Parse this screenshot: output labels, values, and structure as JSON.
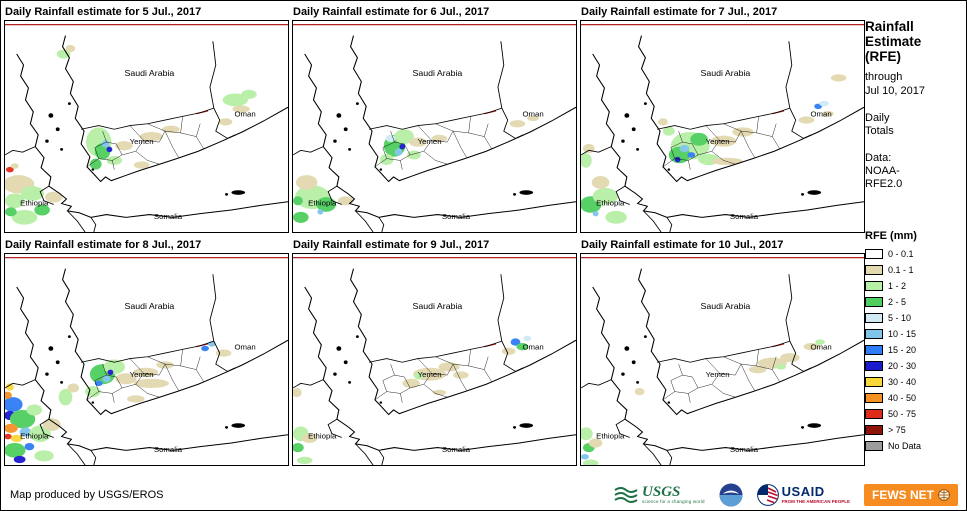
{
  "page": {
    "background": "#FFFFFF",
    "border_color": "#000000"
  },
  "map_labels": {
    "saudi_arabia": "Saudi Arabia",
    "oman": "Oman",
    "yemen": "Yemen",
    "ethiopia": "Ethiopia",
    "somalia": "Somalia"
  },
  "map_palette": {
    "w": "#FFFFFF",
    "t": "#E2D9AF",
    "g1": "#B7EFA5",
    "g2": "#4FCE5D",
    "b1": "#CFEAF5",
    "b2": "#7FC4EA",
    "b3": "#2F7DF6",
    "b4": "#1B1BCE",
    "y": "#F8D839",
    "o": "#F59123",
    "r": "#DF2C18",
    "dr": "#8C1309",
    "nd": "#9C9C9C"
  },
  "panels": [
    {
      "title": "Daily Rainfall estimate for 5 Jul., 2017",
      "blobs": [
        [
          60,
          36,
          7,
          5,
          "g1"
        ],
        [
          67,
          30,
          5,
          4,
          "t"
        ],
        [
          5,
          162,
          4,
          3,
          "r"
        ],
        [
          10,
          158,
          4,
          3,
          "t"
        ],
        [
          14,
          178,
          16,
          10,
          "t"
        ],
        [
          10,
          196,
          10,
          8,
          "g1"
        ],
        [
          28,
          188,
          12,
          8,
          "g1"
        ],
        [
          20,
          214,
          13,
          8,
          "g1"
        ],
        [
          38,
          206,
          8,
          6,
          "g2"
        ],
        [
          50,
          192,
          9,
          6,
          "t"
        ],
        [
          6,
          208,
          6,
          5,
          "g2"
        ],
        [
          96,
          132,
          13,
          16,
          "g1"
        ],
        [
          100,
          142,
          8,
          9,
          "g2"
        ],
        [
          103,
          134,
          4,
          4,
          "b2"
        ],
        [
          107,
          140,
          3,
          3,
          "b4"
        ],
        [
          93,
          156,
          6,
          6,
          "g2"
        ],
        [
          112,
          152,
          8,
          5,
          "g1"
        ],
        [
          122,
          136,
          9,
          5,
          "t"
        ],
        [
          150,
          126,
          12,
          5,
          "t"
        ],
        [
          170,
          118,
          9,
          4,
          "t"
        ],
        [
          140,
          157,
          8,
          4,
          "t"
        ],
        [
          236,
          86,
          13,
          7,
          "g1"
        ],
        [
          250,
          80,
          8,
          5,
          "g1"
        ],
        [
          242,
          96,
          9,
          4,
          "t"
        ],
        [
          226,
          110,
          7,
          4,
          "t"
        ]
      ]
    },
    {
      "title": "Daily Rainfall estimate for 6 Jul., 2017",
      "blobs": [
        [
          104,
          136,
          11,
          12,
          "g2"
        ],
        [
          114,
          126,
          10,
          8,
          "g1"
        ],
        [
          108,
          143,
          4,
          4,
          "b2"
        ],
        [
          112,
          137,
          3,
          3,
          "b4"
        ],
        [
          96,
          151,
          7,
          6,
          "g1"
        ],
        [
          128,
          132,
          9,
          5,
          "t"
        ],
        [
          124,
          146,
          7,
          5,
          "g1"
        ],
        [
          100,
          128,
          5,
          4,
          "b1"
        ],
        [
          20,
          192,
          18,
          13,
          "g1"
        ],
        [
          34,
          200,
          10,
          8,
          "g2"
        ],
        [
          14,
          176,
          11,
          8,
          "t"
        ],
        [
          8,
          214,
          8,
          6,
          "g2"
        ],
        [
          28,
          208,
          3,
          3,
          "b2"
        ],
        [
          54,
          196,
          8,
          5,
          "t"
        ],
        [
          5,
          196,
          5,
          5,
          "g2"
        ],
        [
          230,
          112,
          8,
          4,
          "t"
        ],
        [
          246,
          106,
          6,
          3,
          "t"
        ],
        [
          150,
          128,
          8,
          4,
          "t"
        ]
      ]
    },
    {
      "title": "Daily Rainfall estimate for 7 Jul., 2017",
      "blobs": [
        [
          112,
          136,
          20,
          15,
          "g1"
        ],
        [
          101,
          146,
          11,
          9,
          "g2"
        ],
        [
          121,
          129,
          9,
          7,
          "g2"
        ],
        [
          106,
          139,
          5,
          4,
          "b2"
        ],
        [
          113,
          146,
          4,
          3,
          "b3"
        ],
        [
          99,
          151,
          3,
          3,
          "b4"
        ],
        [
          131,
          151,
          11,
          6,
          "g1"
        ],
        [
          146,
          131,
          13,
          6,
          "t"
        ],
        [
          166,
          121,
          11,
          5,
          "t"
        ],
        [
          150,
          153,
          16,
          4,
          "t"
        ],
        [
          10,
          200,
          11,
          9,
          "g2"
        ],
        [
          25,
          191,
          13,
          9,
          "g1"
        ],
        [
          20,
          176,
          9,
          7,
          "t"
        ],
        [
          36,
          214,
          11,
          7,
          "g1"
        ],
        [
          15,
          210,
          3,
          3,
          "b2"
        ],
        [
          5,
          152,
          6,
          8,
          "g1"
        ],
        [
          8,
          139,
          6,
          5,
          "t"
        ],
        [
          243,
          93,
          4,
          3,
          "b3"
        ],
        [
          249,
          90,
          5,
          3,
          "b1"
        ],
        [
          231,
          108,
          8,
          4,
          "t"
        ],
        [
          253,
          101,
          6,
          3,
          "t"
        ],
        [
          264,
          62,
          8,
          4,
          "t"
        ],
        [
          90,
          120,
          6,
          5,
          "g1"
        ],
        [
          84,
          110,
          5,
          4,
          "t"
        ]
      ]
    },
    {
      "title": "Daily Rainfall estimate for 8 Jul., 2017",
      "blobs": [
        [
          8,
          164,
          10,
          8,
          "b3"
        ],
        [
          5,
          176,
          6,
          5,
          "b4"
        ],
        [
          18,
          180,
          13,
          10,
          "g2"
        ],
        [
          6,
          190,
          7,
          5,
          "o"
        ],
        [
          3,
          199,
          4,
          3,
          "r"
        ],
        [
          12,
          201,
          6,
          4,
          "y"
        ],
        [
          21,
          194,
          6,
          5,
          "b2"
        ],
        [
          10,
          214,
          11,
          8,
          "g2"
        ],
        [
          25,
          210,
          5,
          4,
          "b3"
        ],
        [
          36,
          196,
          11,
          9,
          "g1"
        ],
        [
          48,
          186,
          9,
          7,
          "t"
        ],
        [
          40,
          220,
          10,
          6,
          "g1"
        ],
        [
          2,
          154,
          5,
          4,
          "o"
        ],
        [
          15,
          224,
          6,
          4,
          "b4"
        ],
        [
          30,
          170,
          8,
          6,
          "g1"
        ],
        [
          5,
          145,
          4,
          4,
          "y"
        ],
        [
          62,
          156,
          7,
          9,
          "g1"
        ],
        [
          70,
          146,
          6,
          5,
          "t"
        ],
        [
          100,
          131,
          13,
          11,
          "g2"
        ],
        [
          112,
          123,
          11,
          8,
          "g1"
        ],
        [
          104,
          136,
          4,
          4,
          "b2"
        ],
        [
          108,
          129,
          3,
          3,
          "b4"
        ],
        [
          96,
          141,
          4,
          3,
          "b3"
        ],
        [
          90,
          150,
          8,
          6,
          "g1"
        ],
        [
          124,
          136,
          11,
          6,
          "t"
        ],
        [
          144,
          129,
          13,
          5,
          "t"
        ],
        [
          164,
          121,
          9,
          4,
          "t"
        ],
        [
          150,
          141,
          18,
          5,
          "t"
        ],
        [
          205,
          103,
          4,
          3,
          "b3"
        ],
        [
          212,
          98,
          4,
          3,
          "b2"
        ],
        [
          224,
          108,
          8,
          4,
          "t"
        ],
        [
          134,
          158,
          9,
          4,
          "t"
        ]
      ]
    },
    {
      "title": "Daily Rainfall estimate for 9 Jul., 2017",
      "blobs": [
        [
          140,
          131,
          17,
          7,
          "t"
        ],
        [
          160,
          123,
          11,
          5,
          "t"
        ],
        [
          121,
          141,
          9,
          5,
          "t"
        ],
        [
          129,
          133,
          5,
          4,
          "g1"
        ],
        [
          172,
          132,
          8,
          4,
          "t"
        ],
        [
          228,
          96,
          5,
          4,
          "b3"
        ],
        [
          235,
          101,
          6,
          4,
          "g2"
        ],
        [
          240,
          92,
          4,
          3,
          "b1"
        ],
        [
          221,
          106,
          7,
          4,
          "t"
        ],
        [
          8,
          196,
          8,
          8,
          "g1"
        ],
        [
          5,
          211,
          6,
          5,
          "g2"
        ],
        [
          17,
          201,
          8,
          5,
          "t"
        ],
        [
          12,
          225,
          8,
          4,
          "g1"
        ],
        [
          4,
          151,
          5,
          5,
          "t"
        ],
        [
          150,
          151,
          7,
          3,
          "t"
        ]
      ]
    },
    {
      "title": "Daily Rainfall estimate for 10 Jul., 2017",
      "blobs": [
        [
          196,
          119,
          15,
          6,
          "t"
        ],
        [
          214,
          113,
          10,
          5,
          "t"
        ],
        [
          181,
          126,
          9,
          4,
          "t"
        ],
        [
          205,
          123,
          5,
          3,
          "g1"
        ],
        [
          236,
          101,
          8,
          4,
          "t"
        ],
        [
          245,
          96,
          5,
          3,
          "g1"
        ],
        [
          5,
          196,
          7,
          7,
          "g1"
        ],
        [
          8,
          211,
          6,
          5,
          "g2"
        ],
        [
          4,
          221,
          4,
          3,
          "b2"
        ],
        [
          15,
          206,
          7,
          5,
          "t"
        ],
        [
          10,
          228,
          8,
          4,
          "g1"
        ],
        [
          60,
          150,
          5,
          4,
          "t"
        ]
      ]
    }
  ],
  "sidebar": {
    "title_lines": [
      "Rainfall",
      "Estimate",
      "(RFE)"
    ],
    "through_lines": [
      "through",
      "Jul 10, 2017"
    ],
    "period_lines": [
      "Daily",
      "Totals"
    ],
    "source_lines": [
      "Data:",
      "NOAA-",
      "RFE2.0"
    ]
  },
  "legend": {
    "title": "RFE (mm)",
    "items": [
      {
        "label": "0 - 0.1",
        "color": "#FFFFFF"
      },
      {
        "label": "0.1 - 1",
        "color": "#E2D9AF"
      },
      {
        "label": "1 - 2",
        "color": "#B7EFA5"
      },
      {
        "label": "2 - 5",
        "color": "#4FCE5D"
      },
      {
        "label": "5 - 10",
        "color": "#CFEAF5"
      },
      {
        "label": "10 - 15",
        "color": "#7FC4EA"
      },
      {
        "label": "15 - 20",
        "color": "#2F7DF6"
      },
      {
        "label": "20 - 30",
        "color": "#1B1BCE"
      },
      {
        "label": "30 - 40",
        "color": "#F8D839"
      },
      {
        "label": "40 - 50",
        "color": "#F59123"
      },
      {
        "label": "50 - 75",
        "color": "#DF2C18"
      },
      {
        "label": "> 75",
        "color": "#8C1309"
      },
      {
        "label": "No Data",
        "color": "#9C9C9C"
      }
    ]
  },
  "footer": {
    "credit": "Map produced by USGS/EROS",
    "logos": {
      "usgs": {
        "name": "USGS",
        "tagline": "science for a changing world"
      },
      "noaa": {
        "name": "NOAA"
      },
      "usaid": {
        "name": "USAID",
        "tagline": "FROM THE AMERICAN PEOPLE"
      },
      "fewsnet": {
        "name": "FEWS NET"
      }
    }
  }
}
